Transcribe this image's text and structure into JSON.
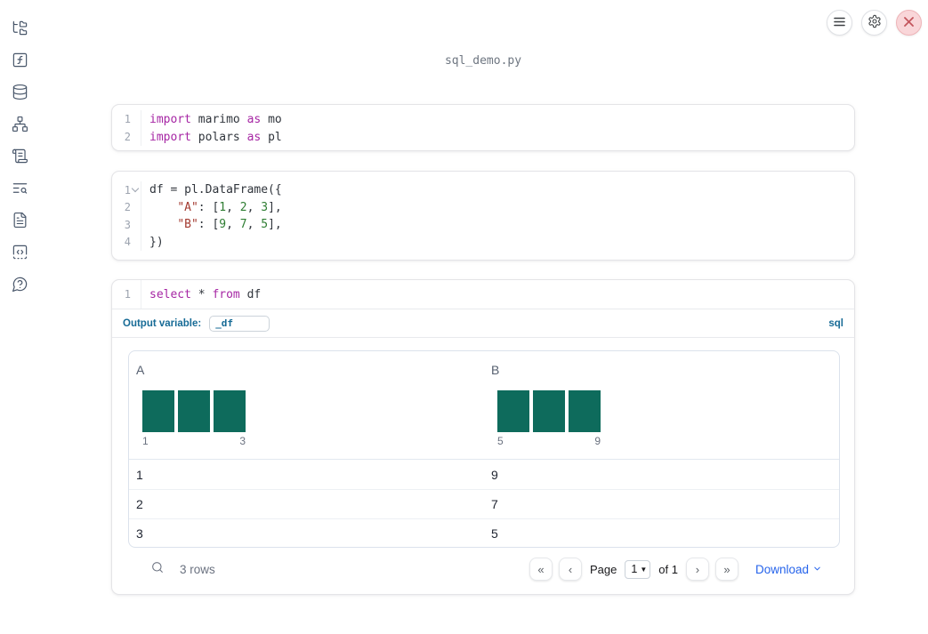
{
  "app": {
    "title": "sql_demo.py"
  },
  "topbar": {
    "buttons": [
      {
        "name": "menu",
        "icon": "hamburger-icon"
      },
      {
        "name": "settings",
        "icon": "gear-icon"
      },
      {
        "name": "shutdown",
        "icon": "close-icon"
      }
    ]
  },
  "sidebar": {
    "items": [
      {
        "name": "file-explorer",
        "icon": "folder-tree-icon"
      },
      {
        "name": "helper-functions",
        "icon": "square-function-icon"
      },
      {
        "name": "data-sources",
        "icon": "database-icon"
      },
      {
        "name": "dependency-graph",
        "icon": "network-icon"
      },
      {
        "name": "logs",
        "icon": "scroll-icon"
      },
      {
        "name": "table-of-contents",
        "icon": "text-search-icon"
      },
      {
        "name": "documentation",
        "icon": "file-text-icon"
      },
      {
        "name": "snippets",
        "icon": "code-square-icon"
      },
      {
        "name": "help",
        "icon": "help-bubble-icon"
      }
    ]
  },
  "cells": [
    {
      "id": "imports",
      "lines": [
        {
          "num": "1",
          "tokens": [
            [
              "kw",
              "import"
            ],
            [
              "pl",
              " marimo "
            ],
            [
              "kw",
              "as"
            ],
            [
              "pl",
              " mo"
            ]
          ]
        },
        {
          "num": "2",
          "tokens": [
            [
              "kw",
              "import"
            ],
            [
              "pl",
              " polars "
            ],
            [
              "kw",
              "as"
            ],
            [
              "pl",
              " pl"
            ]
          ]
        }
      ]
    },
    {
      "id": "dataframe",
      "lines": [
        {
          "num": "1",
          "fold": true,
          "tokens": [
            [
              "pl",
              "df = pl.DataFrame({"
            ]
          ]
        },
        {
          "num": "2",
          "tokens": [
            [
              "pl",
              "    "
            ],
            [
              "str",
              "\"A\""
            ],
            [
              "pl",
              ": ["
            ],
            [
              "num",
              "1"
            ],
            [
              "pl",
              ", "
            ],
            [
              "num",
              "2"
            ],
            [
              "pl",
              ", "
            ],
            [
              "num",
              "3"
            ],
            [
              "pl",
              "],"
            ]
          ]
        },
        {
          "num": "3",
          "tokens": [
            [
              "pl",
              "    "
            ],
            [
              "str",
              "\"B\""
            ],
            [
              "pl",
              ": ["
            ],
            [
              "num",
              "9"
            ],
            [
              "pl",
              ", "
            ],
            [
              "num",
              "7"
            ],
            [
              "pl",
              ", "
            ],
            [
              "num",
              "5"
            ],
            [
              "pl",
              "],"
            ]
          ]
        },
        {
          "num": "4",
          "tokens": [
            [
              "pl",
              "})"
            ]
          ]
        }
      ]
    },
    {
      "id": "sql-query",
      "lines": [
        {
          "num": "1",
          "tokens": [
            [
              "kw",
              "select"
            ],
            [
              "pl",
              " * "
            ],
            [
              "kw",
              "from"
            ],
            [
              "pl",
              " df"
            ]
          ]
        }
      ]
    }
  ],
  "sql": {
    "output_variable_label": "Output variable:",
    "output_variable_value": "_df",
    "language": "sql"
  },
  "table": {
    "columns": [
      {
        "name": "A",
        "hist": {
          "bars": [
            1,
            1,
            1
          ],
          "min_label": "1",
          "max_label": "3"
        }
      },
      {
        "name": "B",
        "hist": {
          "bars": [
            1,
            1,
            1
          ],
          "min_label": "5",
          "max_label": "9"
        }
      }
    ],
    "rows": [
      [
        "1",
        "9"
      ],
      [
        "2",
        "7"
      ],
      [
        "3",
        "5"
      ]
    ],
    "footer": {
      "rows_text": "3 rows",
      "page_label": "Page",
      "page_value": "1",
      "of_text": "of 1",
      "download_label": "Download"
    }
  },
  "colors": {
    "accent_blue": "#176b96",
    "link_blue": "#2563eb",
    "histogram_bar": "#0e6b5c",
    "syntax_keyword": "#a626a4",
    "syntax_string": "#a33a30",
    "syntax_number": "#2e7d32",
    "shutdown_red": "#c4565e"
  }
}
